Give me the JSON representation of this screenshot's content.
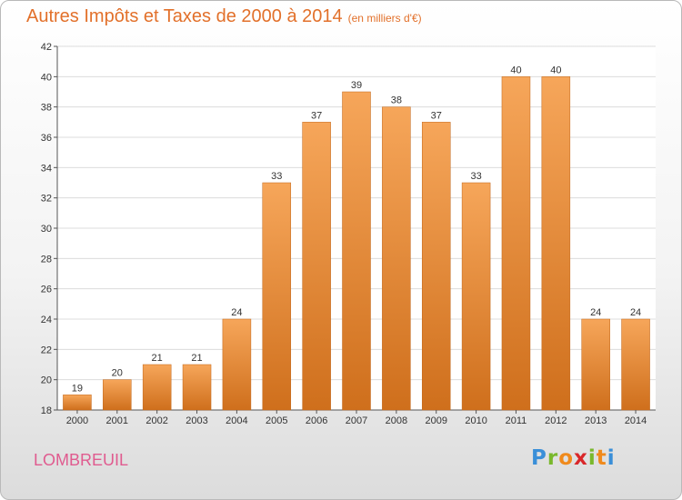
{
  "header": {
    "title": "Autres Impôts et Taxes de 2000 à 2014",
    "unit": "(en milliers d'€)"
  },
  "footer": {
    "place": "LOMBREUIL",
    "logo": [
      "P",
      "r",
      "o",
      "x",
      "i",
      "t",
      "i"
    ],
    "logo_colors": [
      "#3a8fd8",
      "#79b82c",
      "#f08a1c",
      "#d9272a",
      "#79b82c",
      "#f08a1c",
      "#3a8fd8"
    ]
  },
  "colors": {
    "bar_light": "#f6a65a",
    "bar_dark": "#cf6f1c",
    "title": "#e2702a",
    "place": "#e05b8f"
  },
  "chart_data": {
    "type": "bar",
    "categories": [
      "2000",
      "2001",
      "2002",
      "2003",
      "2004",
      "2005",
      "2006",
      "2007",
      "2008",
      "2009",
      "2010",
      "2011",
      "2012",
      "2013",
      "2014"
    ],
    "values": [
      19,
      20,
      21,
      21,
      24,
      33,
      37,
      39,
      38,
      37,
      33,
      40,
      40,
      24,
      24
    ],
    "ylim": [
      18,
      42
    ],
    "yticks": [
      18,
      20,
      22,
      24,
      26,
      28,
      30,
      32,
      34,
      36,
      38,
      40,
      42
    ],
    "grid": true,
    "title": "Autres Impôts et Taxes de 2000 à 2014",
    "xlabel": "",
    "ylabel": ""
  }
}
